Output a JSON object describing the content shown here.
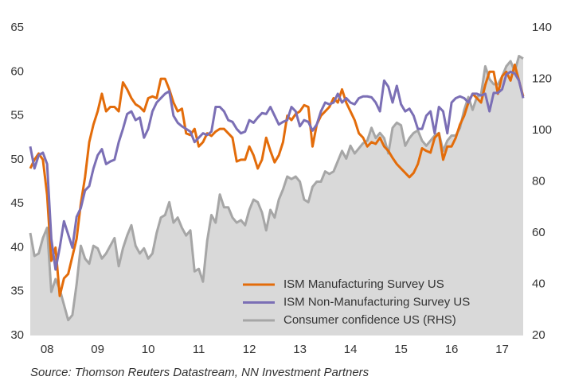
{
  "chart_data": {
    "type": "line",
    "categories": [
      null,
      null,
      null,
      null,
      "08",
      null,
      null,
      null,
      null,
      null,
      null,
      null,
      null,
      null,
      null,
      null,
      "09",
      null,
      null,
      null,
      null,
      null,
      null,
      null,
      null,
      null,
      null,
      null,
      "10",
      null,
      null,
      null,
      null,
      null,
      null,
      null,
      null,
      null,
      null,
      null,
      "11",
      null,
      null,
      null,
      null,
      null,
      null,
      null,
      null,
      null,
      null,
      null,
      "12",
      null,
      null,
      null,
      null,
      null,
      null,
      null,
      null,
      null,
      null,
      null,
      "13",
      null,
      null,
      null,
      null,
      null,
      null,
      null,
      null,
      null,
      null,
      null,
      "14",
      null,
      null,
      null,
      null,
      null,
      null,
      null,
      null,
      null,
      null,
      null,
      "15",
      null,
      null,
      null,
      null,
      null,
      null,
      null,
      null,
      null,
      null,
      null,
      "16",
      null,
      null,
      null,
      null,
      null,
      null,
      null,
      null,
      null,
      null,
      null,
      "17",
      null,
      null,
      null,
      null,
      null
    ],
    "series": [
      {
        "name": "ISM Manufacturing Survey US",
        "color": "#e36c0a",
        "values": [
          49,
          50,
          50.7,
          50,
          46,
          38.5,
          40,
          34.5,
          36.5,
          37,
          39,
          41,
          45,
          48,
          52,
          54,
          55.5,
          57.5,
          55.5,
          56,
          56,
          55.5,
          58.8,
          58,
          57,
          56.3,
          56,
          55.5,
          57,
          57.2,
          57,
          59.2,
          59.2,
          58,
          56.5,
          55.5,
          55.8,
          53,
          52.8,
          53.5,
          51.5,
          52,
          53,
          52.7,
          53.2,
          53.5,
          53.5,
          53,
          52.5,
          49.8,
          50,
          50,
          51.5,
          50.5,
          49,
          50,
          52.5,
          51,
          49.7,
          50.5,
          52,
          55,
          54.5,
          55.2,
          55.5,
          56.2,
          56,
          51.5,
          54,
          55,
          55.5,
          56,
          57,
          56.5,
          58,
          56.5,
          55.5,
          54.5,
          53,
          52.5,
          51.5,
          52,
          51.8,
          52.5,
          51.5,
          51,
          50.2,
          49.5,
          49,
          48.5,
          48,
          48.5,
          49.5,
          51.3,
          51,
          50.8,
          52.5,
          53,
          50,
          51.5,
          51.5,
          52.5,
          54,
          55,
          56.5,
          57.5,
          57,
          56.5,
          58.5,
          60,
          60,
          57.5,
          59.5,
          60,
          59,
          60.8,
          59,
          57.2
        ]
      },
      {
        "name": "ISM Non-Manufacturing Survey US",
        "color": "#7b6fb5",
        "values": [
          51.5,
          49,
          50.5,
          50.8,
          49.5,
          41,
          37.5,
          40,
          43,
          41.5,
          40,
          43.5,
          44.5,
          46.5,
          47,
          49,
          50.5,
          51.2,
          49.5,
          49.8,
          50,
          52,
          53.5,
          55.2,
          55.5,
          54.5,
          54.8,
          52.5,
          53.5,
          55.5,
          56.5,
          57,
          57.5,
          57.8,
          55,
          54.2,
          53.8,
          53.5,
          53.2,
          52,
          52.5,
          53,
          52.8,
          53.2,
          56,
          56,
          55.5,
          54.5,
          54.3,
          53.5,
          53,
          53.2,
          54.5,
          54.2,
          54.8,
          55.3,
          55.2,
          56,
          55,
          54,
          54.3,
          54.5,
          56,
          55.5,
          53.8,
          54.5,
          54.3,
          53.3,
          54,
          55.5,
          56.5,
          56.3,
          56.5,
          57.5,
          56.5,
          57,
          56.5,
          56.3,
          57,
          57.2,
          57.2,
          57.1,
          56.5,
          55.5,
          59,
          58.3,
          56.5,
          58.4,
          56.3,
          55.5,
          55.8,
          55,
          53.5,
          53.5,
          55,
          55.5,
          53,
          56,
          55.5,
          53,
          56.5,
          57,
          57.2,
          57,
          56.5,
          57.5,
          57.5,
          57.3,
          57.5,
          55.5,
          57.6,
          57.6,
          58,
          59.7,
          60,
          59.8,
          59,
          57
        ]
      },
      {
        "name": "Consumer confidence US (RHS)",
        "color": "#a6a6a6",
        "area_color": "#d9d9d9",
        "axis": "y2",
        "values": [
          60,
          51,
          52,
          58,
          62,
          37,
          42,
          38,
          32,
          26,
          28,
          40,
          55,
          50,
          48,
          55,
          54,
          50,
          52,
          55,
          58,
          47,
          54,
          59,
          63,
          55,
          52,
          54,
          50,
          52,
          60,
          66,
          67,
          72,
          64,
          66,
          62,
          59,
          61,
          45,
          46,
          41,
          57,
          67,
          64,
          75,
          70,
          70,
          66,
          64,
          65,
          63,
          69,
          73,
          72,
          68,
          61,
          69,
          66,
          73,
          77,
          82,
          81,
          82,
          80,
          73,
          72,
          78,
          80,
          80,
          84,
          83,
          84,
          88,
          92,
          89,
          94,
          91,
          93,
          95,
          96,
          101,
          97,
          99,
          97,
          91,
          101,
          103,
          102,
          94,
          97,
          99,
          100,
          96,
          94,
          96,
          98,
          99,
          92,
          96,
          98,
          98,
          101,
          108,
          113,
          108,
          113,
          114,
          125,
          120,
          118,
          118,
          121,
          125,
          127,
          123,
          129,
          128
        ]
      }
    ],
    "ylim": [
      30,
      65
    ],
    "yticks": [
      30,
      35,
      40,
      45,
      50,
      55,
      60,
      65
    ],
    "y2lim": [
      20,
      140
    ],
    "y2ticks": [
      20,
      40,
      60,
      80,
      100,
      120,
      140
    ],
    "grid": false,
    "legend": "bottom",
    "source": "Source: Thomson Reuters Datastream, NN Investment Partners"
  }
}
